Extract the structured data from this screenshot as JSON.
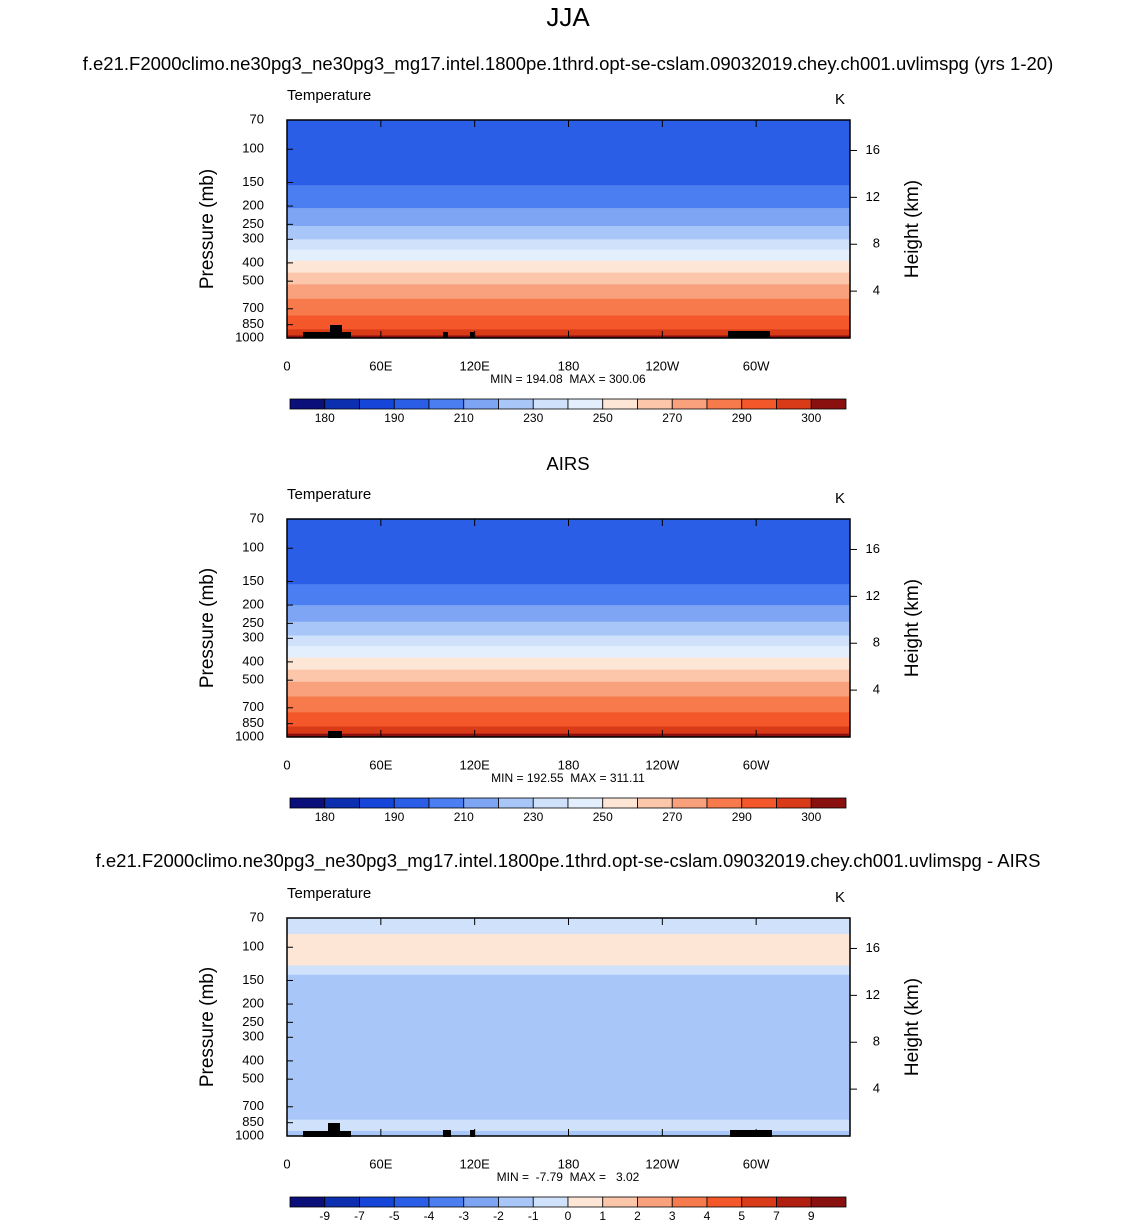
{
  "chart_data": [
    {
      "type": "contour",
      "title": "JJA",
      "subtitle": "f.e21.F2000climo.ne30pg3_ne30pg3_mg17.intel.1800pe.1thrd.opt-se-cslam.09032019.chey.ch001.uvlimspg (yrs 1-20)",
      "left_label": "Temperature",
      "right_label": "K",
      "ylabel": "Pressure (mb)",
      "y2label": "Height (km)",
      "stats": "MIN = 194.08  MAX = 300.06",
      "xlim": [
        0,
        360
      ],
      "xticks": [
        0,
        {
          "value": 60,
          "label": "60E"
        },
        {
          "value": 120,
          "label": "120E"
        },
        180,
        {
          "value": 240,
          "label": "120W"
        },
        {
          "value": 300,
          "label": "60W"
        }
      ],
      "ylim": [
        1000,
        70
      ],
      "log_y": true,
      "yticks": [
        70,
        100,
        150,
        200,
        250,
        300,
        400,
        500,
        700,
        850,
        1000
      ],
      "y2lim": [
        0,
        18.6
      ],
      "y2ticks": [
        4,
        8,
        12,
        16
      ],
      "layers": {
        "pressure_edges": [
          70,
          155,
          205,
          255,
          300,
          340,
          390,
          450,
          520,
          620,
          760,
          900,
          970,
          1000
        ],
        "values": [
          195,
          205,
          215,
          225,
          235,
          245,
          255,
          265,
          275,
          285,
          292,
          297,
          302
        ]
      },
      "colorbar": {
        "levels": [
          180,
          185,
          190,
          200,
          210,
          220,
          230,
          240,
          250,
          260,
          270,
          280,
          290,
          295,
          300
        ],
        "label_every": 2,
        "colors": [
          "#0a0f7a",
          "#0c2fb0",
          "#1646d9",
          "#2a5ee6",
          "#4b7ef0",
          "#7ea5f3",
          "#a8c6f8",
          "#cfe1fb",
          "#e4effd",
          "#fde6d5",
          "#fbc6aa",
          "#f9a07c",
          "#f77a4c",
          "#f4572a",
          "#d93a18",
          "#8a1010"
        ]
      }
    },
    {
      "type": "contour",
      "title": "AIRS",
      "left_label": "Temperature",
      "right_label": "K",
      "ylabel": "Pressure (mb)",
      "y2label": "Height (km)",
      "stats": "MIN = 192.55  MAX = 311.11",
      "xlim": [
        0,
        360
      ],
      "xticks": [
        0,
        {
          "value": 60,
          "label": "60E"
        },
        {
          "value": 120,
          "label": "120E"
        },
        180,
        {
          "value": 240,
          "label": "120W"
        },
        {
          "value": 300,
          "label": "60W"
        }
      ],
      "ylim": [
        1000,
        70
      ],
      "log_y": true,
      "yticks": [
        70,
        100,
        150,
        200,
        250,
        300,
        400,
        500,
        700,
        850,
        1000
      ],
      "y2lim": [
        0,
        18.6
      ],
      "y2ticks": [
        4,
        8,
        12,
        16
      ],
      "layers": {
        "pressure_edges": [
          70,
          155,
          200,
          245,
          290,
          330,
          380,
          440,
          510,
          610,
          740,
          880,
          960,
          1000
        ],
        "values": [
          195,
          205,
          215,
          225,
          235,
          245,
          255,
          265,
          275,
          285,
          292,
          297,
          302
        ]
      },
      "colorbar": {
        "levels": [
          180,
          185,
          190,
          200,
          210,
          220,
          230,
          240,
          250,
          260,
          270,
          280,
          290,
          295,
          300
        ],
        "label_every": 2,
        "colors": [
          "#0a0f7a",
          "#0c2fb0",
          "#1646d9",
          "#2a5ee6",
          "#4b7ef0",
          "#7ea5f3",
          "#a8c6f8",
          "#cfe1fb",
          "#e4effd",
          "#fde6d5",
          "#fbc6aa",
          "#f9a07c",
          "#f77a4c",
          "#f4572a",
          "#d93a18",
          "#8a1010"
        ]
      }
    },
    {
      "type": "contour",
      "title": "f.e21.F2000climo.ne30pg3_ne30pg3_mg17.intel.1800pe.1thrd.opt-se-cslam.09032019.chey.ch001.uvlimspg - AIRS",
      "left_label": "Temperature",
      "right_label": "K",
      "ylabel": "Pressure (mb)",
      "y2label": "Height (km)",
      "stats": "MIN =  -7.79  MAX =   3.02",
      "xlim": [
        0,
        360
      ],
      "xticks": [
        0,
        {
          "value": 60,
          "label": "60E"
        },
        {
          "value": 120,
          "label": "120E"
        },
        180,
        {
          "value": 240,
          "label": "120W"
        },
        {
          "value": 300,
          "label": "60W"
        }
      ],
      "ylim": [
        1000,
        70
      ],
      "log_y": true,
      "yticks": [
        70,
        100,
        150,
        200,
        250,
        300,
        400,
        500,
        700,
        850,
        1000
      ],
      "y2lim": [
        0,
        18.6
      ],
      "y2ticks": [
        4,
        8,
        12,
        16
      ],
      "layers": {
        "pressure_edges": [
          70,
          85,
          125,
          140,
          320,
          560,
          820,
          940,
          1000
        ],
        "values": [
          -0.5,
          0.5,
          -0.5,
          -1.5,
          -1.5,
          -1.5,
          -0.5,
          -1.5
        ]
      },
      "colorbar": {
        "levels": [
          -9,
          -7,
          -5,
          -4,
          -3,
          -2,
          -1,
          0,
          1,
          2,
          3,
          4,
          5,
          7,
          9
        ],
        "label_every": 1,
        "colors": [
          "#0a0f7a",
          "#0c2fb0",
          "#1646d9",
          "#2a5ee6",
          "#4b7ef0",
          "#7ea5f3",
          "#a8c6f8",
          "#cfe1fb",
          "#fde6d5",
          "#fbc6aa",
          "#f9a07c",
          "#f77a4c",
          "#f4572a",
          "#d93a18",
          "#b01f10",
          "#8a1010"
        ]
      }
    }
  ]
}
